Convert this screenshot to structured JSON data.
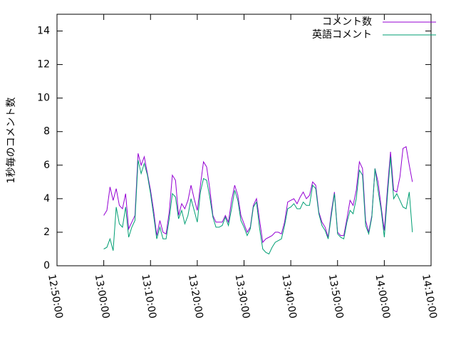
{
  "chart_data": {
    "type": "line",
    "y_label": "1秒毎のコメント数",
    "x": [
      46800,
      46840,
      46880,
      46920,
      46960,
      47000,
      47040,
      47080,
      47120,
      47160,
      47200,
      47240,
      47280,
      47320,
      47360,
      47400,
      47440,
      47480,
      47520,
      47560,
      47600,
      47640,
      47680,
      47720,
      47760,
      47800,
      47840,
      47880,
      47920,
      47960,
      48000,
      48040,
      48080,
      48120,
      48160,
      48200,
      48240,
      48280,
      48320,
      48360,
      48400,
      48440,
      48480,
      48520,
      48560,
      48600,
      48640,
      48680,
      48720,
      48760,
      48800,
      48840,
      48880,
      48920,
      48960,
      49000,
      49040,
      49080,
      49120,
      49160,
      49200,
      49240,
      49280,
      49320,
      49360,
      49400,
      49440,
      49480,
      49520,
      49560,
      49600,
      49640,
      49680,
      49720,
      49760,
      49800,
      49840,
      49880,
      49920,
      49960,
      50000,
      50040,
      50080,
      50120,
      50160,
      50200,
      50240,
      50280,
      50320,
      50360,
      50400,
      50440,
      50480,
      50520,
      50560,
      50600,
      50640,
      50680,
      50720,
      50760
    ],
    "series": [
      {
        "name": "コメント数",
        "color": "#9400d3",
        "values": [
          3.0,
          3.3,
          4.7,
          3.9,
          4.6,
          3.6,
          3.4,
          4.3,
          2.2,
          2.6,
          3.0,
          6.7,
          6.0,
          6.5,
          5.5,
          4.5,
          3.3,
          1.8,
          2.7,
          2.0,
          1.9,
          3.2,
          5.4,
          5.1,
          3.0,
          3.7,
          3.4,
          3.9,
          4.8,
          4.0,
          3.3,
          4.8,
          6.2,
          5.9,
          4.6,
          3.0,
          2.6,
          2.6,
          2.6,
          3.0,
          2.6,
          3.9,
          4.8,
          4.2,
          3.0,
          2.5,
          2.0,
          2.3,
          3.6,
          4.0,
          2.7,
          1.4,
          1.6,
          1.7,
          1.8,
          2.0,
          2.0,
          1.9,
          2.6,
          3.8,
          3.9,
          4.0,
          3.7,
          4.1,
          4.4,
          4.0,
          4.2,
          5.0,
          4.8,
          3.2,
          2.6,
          2.3,
          1.7,
          3.2,
          4.4,
          2.0,
          1.8,
          1.8,
          2.8,
          3.9,
          3.6,
          4.5,
          6.2,
          5.8,
          2.7,
          2.0,
          3.0,
          5.8,
          5.0,
          3.5,
          2.1,
          4.6,
          6.8,
          4.5,
          4.4,
          5.3,
          7.0,
          7.1,
          6.0,
          5.0
        ]
      },
      {
        "name": "英語コメント",
        "color": "#009e73",
        "values": [
          1.0,
          1.1,
          1.6,
          0.9,
          3.5,
          2.5,
          2.3,
          3.5,
          1.7,
          2.3,
          2.7,
          6.3,
          5.5,
          6.1,
          5.4,
          4.3,
          3.0,
          1.6,
          2.3,
          1.6,
          1.6,
          2.8,
          4.3,
          4.1,
          2.8,
          3.3,
          2.5,
          3.0,
          4.0,
          3.3,
          2.6,
          4.4,
          5.2,
          5.1,
          4.1,
          2.9,
          2.3,
          2.3,
          2.4,
          2.9,
          2.4,
          3.4,
          4.5,
          3.9,
          2.7,
          2.3,
          1.8,
          2.2,
          3.5,
          3.8,
          2.2,
          1.0,
          0.8,
          0.7,
          1.1,
          1.4,
          1.5,
          1.6,
          2.4,
          3.4,
          3.5,
          3.7,
          3.4,
          3.4,
          3.8,
          3.6,
          3.6,
          4.8,
          4.6,
          3.1,
          2.4,
          2.1,
          1.6,
          3.0,
          4.3,
          1.9,
          1.7,
          1.6,
          2.6,
          3.3,
          3.1,
          4.0,
          5.7,
          5.4,
          2.4,
          1.9,
          2.9,
          5.8,
          4.5,
          3.3,
          1.7,
          4.2,
          6.5,
          4.0,
          4.3,
          3.9,
          3.5,
          3.4,
          4.4,
          2.0
        ]
      }
    ],
    "xlim": [
      46200,
      51000
    ],
    "xticks": [
      {
        "value": 46200,
        "label": "12:50:00"
      },
      {
        "value": 46800,
        "label": "13:00:00"
      },
      {
        "value": 47400,
        "label": "13:10:00"
      },
      {
        "value": 48000,
        "label": "13:20:00"
      },
      {
        "value": 48600,
        "label": "13:30:00"
      },
      {
        "value": 49200,
        "label": "13:40:00"
      },
      {
        "value": 49800,
        "label": "13:50:00"
      },
      {
        "value": 50400,
        "label": "14:00:00"
      },
      {
        "value": 51000,
        "label": "14:10:00"
      }
    ],
    "ylim": [
      0,
      15
    ],
    "yticks": [
      0,
      2,
      4,
      6,
      8,
      10,
      12,
      14
    ],
    "legend": "top-right"
  }
}
